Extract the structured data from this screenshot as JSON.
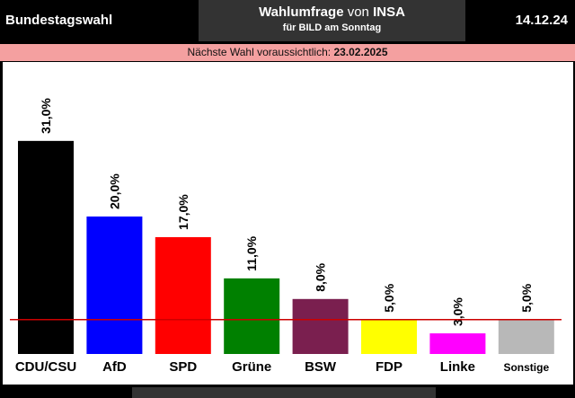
{
  "header": {
    "left_title": "Bundestagswahl",
    "center_title_bold": "Wahlumfrage",
    "center_title_mid": "von",
    "center_title_end": "INSA",
    "center_subtitle": "für BILD am Sonntag",
    "date": "14.12.24"
  },
  "subbar": {
    "text": "Nächste Wahl voraussichtlich:",
    "date": "23.02.2025"
  },
  "chart_data": {
    "type": "bar",
    "title": "",
    "xlabel": "",
    "ylabel": "",
    "ylim": [
      0,
      35
    ],
    "categories": [
      "CDU/CSU",
      "AfD",
      "SPD",
      "Grüne",
      "BSW",
      "FDP",
      "Linke",
      "Sonstige"
    ],
    "values": [
      31.0,
      20.0,
      17.0,
      11.0,
      8.0,
      5.0,
      3.0,
      5.0
    ],
    "value_labels": [
      "31,0%",
      "20,0%",
      "17,0%",
      "11,0%",
      "8,0%",
      "5,0%",
      "3,0%",
      "5,0%"
    ],
    "colors": [
      "#000000",
      "#0000ff",
      "#ff0000",
      "#008000",
      "#7a1f4f",
      "#ffff00",
      "#ff00ff",
      "#b8b8b8"
    ],
    "threshold": 5.0,
    "threshold_color": "#cc0000",
    "grid": false,
    "legend": "none"
  }
}
